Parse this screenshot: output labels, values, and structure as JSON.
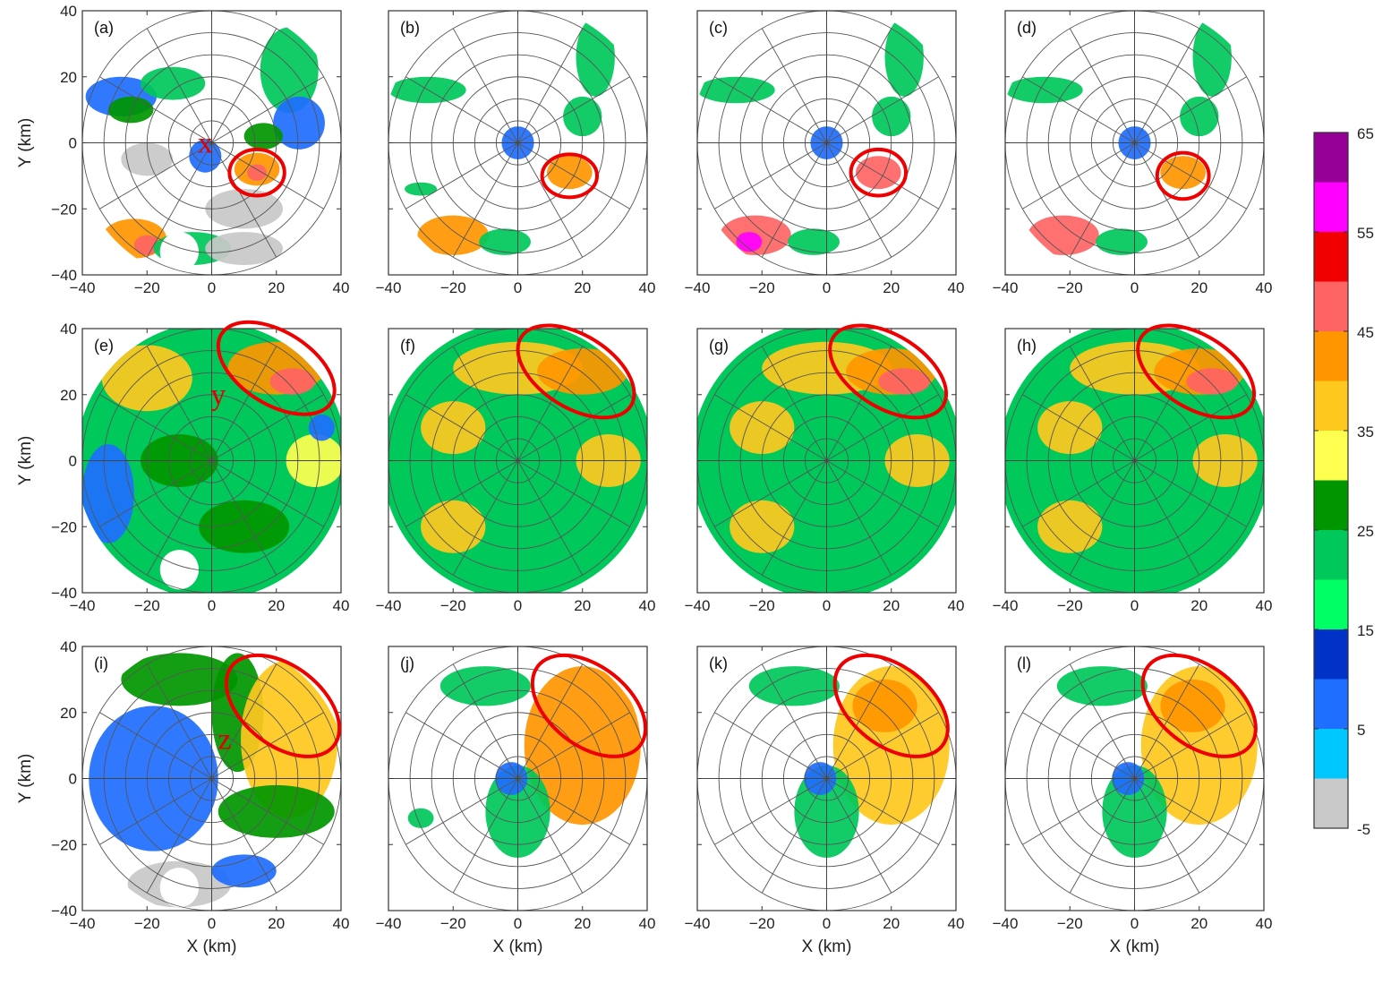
{
  "figure": {
    "x_axis_label": "X (km)",
    "y_axis_label": "Y (km)",
    "axis_ticks": [
      -40,
      -20,
      0,
      20,
      40
    ],
    "axis_range_km": [
      -40,
      40
    ],
    "range_rings_km": [
      6.67,
      13.33,
      20,
      26.67,
      33.33,
      40
    ],
    "radial_spacing_deg": 30,
    "radar_max_range_km": 42
  },
  "colorbar": {
    "tick_labels": [
      "65",
      "55",
      "45",
      "35",
      "25",
      "15",
      "5",
      "-5"
    ],
    "tick_values": [
      65,
      55,
      45,
      35,
      25,
      15,
      5,
      -5
    ],
    "range": [
      -5,
      65
    ],
    "bins": [
      {
        "from": -5,
        "to": 0,
        "color": "#c8c8c8"
      },
      {
        "from": 0,
        "to": 5,
        "color": "#00c8ff"
      },
      {
        "from": 5,
        "to": 10,
        "color": "#1e6eff"
      },
      {
        "from": 10,
        "to": 15,
        "color": "#0032c8"
      },
      {
        "from": 15,
        "to": 20,
        "color": "#00ff64"
      },
      {
        "from": 20,
        "to": 25,
        "color": "#00c85a"
      },
      {
        "from": 25,
        "to": 30,
        "color": "#009600"
      },
      {
        "from": 30,
        "to": 35,
        "color": "#ffff50"
      },
      {
        "from": 35,
        "to": 40,
        "color": "#ffc81e"
      },
      {
        "from": 40,
        "to": 45,
        "color": "#ff9600"
      },
      {
        "from": 45,
        "to": 50,
        "color": "#ff6464"
      },
      {
        "from": 50,
        "to": 55,
        "color": "#f00000"
      },
      {
        "from": 55,
        "to": 60,
        "color": "#ff00ff"
      },
      {
        "from": 60,
        "to": 65,
        "color": "#960096"
      }
    ]
  },
  "chart_data": {
    "type": "heatmap",
    "description_units": "km",
    "panels": [
      {
        "label": "(a)",
        "row": 0,
        "col": 0,
        "marker": "x",
        "marker_pos_km": [
          -2,
          -3
        ],
        "ellipse": {
          "cx": 14,
          "cy": -9,
          "rx": 8.5,
          "ry": 7,
          "angle": 0
        },
        "echo_regions": [
          {
            "cx": -28,
            "cy": 14,
            "rx": 11,
            "ry": 6,
            "color": "#1e6eff"
          },
          {
            "cx": -25,
            "cy": 10,
            "rx": 7,
            "ry": 4,
            "color": "#009600"
          },
          {
            "cx": -12,
            "cy": 18,
            "rx": 10,
            "ry": 5,
            "color": "#00c85a"
          },
          {
            "cx": 24,
            "cy": 22,
            "rx": 9,
            "ry": 13,
            "color": "#00c85a"
          },
          {
            "cx": 27,
            "cy": 6,
            "rx": 8,
            "ry": 8,
            "color": "#1e6eff"
          },
          {
            "cx": 16,
            "cy": 2,
            "rx": 6,
            "ry": 4,
            "color": "#009600"
          },
          {
            "cx": 14,
            "cy": -8,
            "rx": 7,
            "ry": 5,
            "color": "#ff9600"
          },
          {
            "cx": 14,
            "cy": -9,
            "rx": 3,
            "ry": 2.5,
            "color": "#ff6464"
          },
          {
            "cx": -20,
            "cy": -5,
            "rx": 8,
            "ry": 5,
            "color": "#c8c8c8"
          },
          {
            "cx": 10,
            "cy": -20,
            "rx": 12,
            "ry": 6,
            "color": "#c8c8c8"
          },
          {
            "cx": -24,
            "cy": -29,
            "rx": 10,
            "ry": 6,
            "color": "#ff9600"
          },
          {
            "cx": -20,
            "cy": -31,
            "rx": 4,
            "ry": 3,
            "color": "#ff6464"
          },
          {
            "cx": -6,
            "cy": -32,
            "rx": 12,
            "ry": 5,
            "color": "#00c85a"
          },
          {
            "cx": 10,
            "cy": -32,
            "rx": 12,
            "ry": 5,
            "color": "#c8c8c8"
          },
          {
            "cx": -2,
            "cy": -4,
            "rx": 5,
            "ry": 5,
            "color": "#1e6eff"
          }
        ],
        "blank_disk": {
          "cx": -10,
          "cy": -33,
          "r": 6
        }
      },
      {
        "label": "(b)",
        "row": 0,
        "col": 1,
        "ellipse": {
          "cx": 16,
          "cy": -10,
          "rx": 8.5,
          "ry": 6.5,
          "angle": 0
        },
        "echo_regions": [
          {
            "cx": -28,
            "cy": 16,
            "rx": 12,
            "ry": 4,
            "color": "#00c85a"
          },
          {
            "cx": 24,
            "cy": 26,
            "rx": 6,
            "ry": 12,
            "color": "#00c85a"
          },
          {
            "cx": 20,
            "cy": 8,
            "rx": 6,
            "ry": 6,
            "color": "#00c85a"
          },
          {
            "cx": 16,
            "cy": -9,
            "rx": 7,
            "ry": 5,
            "color": "#ff9600"
          },
          {
            "cx": 0,
            "cy": 0,
            "rx": 5,
            "ry": 5,
            "color": "#1e6eff"
          },
          {
            "cx": -20,
            "cy": -28,
            "rx": 11,
            "ry": 6,
            "color": "#ff9600"
          },
          {
            "cx": -4,
            "cy": -30,
            "rx": 8,
            "ry": 4,
            "color": "#00c85a"
          },
          {
            "cx": -30,
            "cy": -14,
            "rx": 5,
            "ry": 2,
            "color": "#00c85a"
          }
        ]
      },
      {
        "label": "(c)",
        "row": 0,
        "col": 2,
        "ellipse": {
          "cx": 16,
          "cy": -9,
          "rx": 8.5,
          "ry": 7,
          "angle": 0
        },
        "echo_regions": [
          {
            "cx": -28,
            "cy": 16,
            "rx": 12,
            "ry": 4,
            "color": "#00c85a"
          },
          {
            "cx": 24,
            "cy": 26,
            "rx": 6,
            "ry": 12,
            "color": "#00c85a"
          },
          {
            "cx": 20,
            "cy": 8,
            "rx": 6,
            "ry": 6,
            "color": "#00c85a"
          },
          {
            "cx": 16,
            "cy": -9,
            "rx": 7,
            "ry": 5,
            "color": "#ff6464"
          },
          {
            "cx": 0,
            "cy": 0,
            "rx": 5,
            "ry": 5,
            "color": "#1e6eff"
          },
          {
            "cx": -22,
            "cy": -28,
            "rx": 11,
            "ry": 6,
            "color": "#ff6464"
          },
          {
            "cx": -24,
            "cy": -30,
            "rx": 4,
            "ry": 3,
            "color": "#ff00ff"
          },
          {
            "cx": -4,
            "cy": -30,
            "rx": 8,
            "ry": 4,
            "color": "#00c85a"
          }
        ]
      },
      {
        "label": "(d)",
        "row": 0,
        "col": 3,
        "ellipse": {
          "cx": 15,
          "cy": -10,
          "rx": 8,
          "ry": 7,
          "angle": 0
        },
        "echo_regions": [
          {
            "cx": -28,
            "cy": 16,
            "rx": 12,
            "ry": 4,
            "color": "#00c85a"
          },
          {
            "cx": 24,
            "cy": 26,
            "rx": 6,
            "ry": 12,
            "color": "#00c85a"
          },
          {
            "cx": 20,
            "cy": 8,
            "rx": 6,
            "ry": 6,
            "color": "#00c85a"
          },
          {
            "cx": 15,
            "cy": -9,
            "rx": 7,
            "ry": 5,
            "color": "#ff9600"
          },
          {
            "cx": 0,
            "cy": 0,
            "rx": 5,
            "ry": 5,
            "color": "#1e6eff"
          },
          {
            "cx": -22,
            "cy": -28,
            "rx": 11,
            "ry": 6,
            "color": "#ff6464"
          },
          {
            "cx": -4,
            "cy": -30,
            "rx": 8,
            "ry": 4,
            "color": "#00c85a"
          }
        ]
      },
      {
        "label": "(e)",
        "row": 1,
        "col": 0,
        "marker": "y",
        "marker_pos_km": [
          2,
          17
        ],
        "ellipse": {
          "cx": 20,
          "cy": 28,
          "rx": 20,
          "ry": 11,
          "angle": 32
        },
        "background": "#00c85a",
        "echo_regions": [
          {
            "cx": -20,
            "cy": 25,
            "rx": 14,
            "ry": 10,
            "color": "#ffc81e"
          },
          {
            "cx": 20,
            "cy": 28,
            "rx": 15,
            "ry": 8,
            "color": "#ff9600"
          },
          {
            "cx": 25,
            "cy": 24,
            "rx": 7,
            "ry": 4,
            "color": "#ff6464"
          },
          {
            "cx": 32,
            "cy": 0,
            "rx": 9,
            "ry": 8,
            "color": "#ffff50"
          },
          {
            "cx": -32,
            "cy": -10,
            "rx": 8,
            "ry": 15,
            "color": "#1e6eff"
          },
          {
            "cx": -10,
            "cy": 0,
            "rx": 12,
            "ry": 8,
            "color": "#009600"
          },
          {
            "cx": 10,
            "cy": -20,
            "rx": 14,
            "ry": 8,
            "color": "#009600"
          },
          {
            "cx": 34,
            "cy": 10,
            "rx": 4,
            "ry": 4,
            "color": "#1e6eff"
          }
        ],
        "blank_disk": {
          "cx": -10,
          "cy": -33,
          "r": 6
        }
      },
      {
        "label": "(f)",
        "row": 1,
        "col": 1,
        "ellipse": {
          "cx": 18,
          "cy": 27,
          "rx": 20,
          "ry": 11,
          "angle": 32
        },
        "background": "#00c85a",
        "echo_regions": [
          {
            "cx": 0,
            "cy": 28,
            "rx": 20,
            "ry": 8,
            "color": "#ffc81e"
          },
          {
            "cx": 20,
            "cy": 27,
            "rx": 14,
            "ry": 7,
            "color": "#ff9600"
          },
          {
            "cx": 28,
            "cy": 0,
            "rx": 10,
            "ry": 8,
            "color": "#ffc81e"
          },
          {
            "cx": -20,
            "cy": 10,
            "rx": 10,
            "ry": 8,
            "color": "#ffc81e"
          },
          {
            "cx": -20,
            "cy": -20,
            "rx": 10,
            "ry": 8,
            "color": "#ffc81e"
          }
        ]
      },
      {
        "label": "(g)",
        "row": 1,
        "col": 2,
        "ellipse": {
          "cx": 19,
          "cy": 27,
          "rx": 20,
          "ry": 11,
          "angle": 32
        },
        "background": "#00c85a",
        "echo_regions": [
          {
            "cx": 0,
            "cy": 28,
            "rx": 20,
            "ry": 8,
            "color": "#ffc81e"
          },
          {
            "cx": 20,
            "cy": 27,
            "rx": 14,
            "ry": 7,
            "color": "#ff9600"
          },
          {
            "cx": 24,
            "cy": 24,
            "rx": 8,
            "ry": 4,
            "color": "#ff6464"
          },
          {
            "cx": 28,
            "cy": 0,
            "rx": 10,
            "ry": 8,
            "color": "#ffc81e"
          },
          {
            "cx": -20,
            "cy": 10,
            "rx": 10,
            "ry": 8,
            "color": "#ffc81e"
          },
          {
            "cx": -20,
            "cy": -20,
            "rx": 10,
            "ry": 8,
            "color": "#ffc81e"
          }
        ]
      },
      {
        "label": "(h)",
        "row": 1,
        "col": 3,
        "ellipse": {
          "cx": 19,
          "cy": 27,
          "rx": 20,
          "ry": 11,
          "angle": 32
        },
        "background": "#00c85a",
        "echo_regions": [
          {
            "cx": 0,
            "cy": 28,
            "rx": 20,
            "ry": 8,
            "color": "#ffc81e"
          },
          {
            "cx": 20,
            "cy": 27,
            "rx": 14,
            "ry": 7,
            "color": "#ff9600"
          },
          {
            "cx": 24,
            "cy": 24,
            "rx": 8,
            "ry": 4,
            "color": "#ff6464"
          },
          {
            "cx": 28,
            "cy": 0,
            "rx": 10,
            "ry": 8,
            "color": "#ffc81e"
          },
          {
            "cx": -20,
            "cy": 10,
            "rx": 10,
            "ry": 8,
            "color": "#ffc81e"
          },
          {
            "cx": -20,
            "cy": -20,
            "rx": 10,
            "ry": 8,
            "color": "#ffc81e"
          }
        ]
      },
      {
        "label": "(i)",
        "row": 2,
        "col": 0,
        "marker": "z",
        "marker_pos_km": [
          4,
          9
        ],
        "ellipse": {
          "cx": 22,
          "cy": 22,
          "rx": 20,
          "ry": 12,
          "angle": 38
        },
        "echo_regions": [
          {
            "cx": -18,
            "cy": 0,
            "rx": 20,
            "ry": 22,
            "color": "#1e6eff"
          },
          {
            "cx": -10,
            "cy": 30,
            "rx": 18,
            "ry": 8,
            "color": "#009600"
          },
          {
            "cx": 8,
            "cy": 20,
            "rx": 8,
            "ry": 18,
            "color": "#009600"
          },
          {
            "cx": 24,
            "cy": 12,
            "rx": 15,
            "ry": 24,
            "color": "#ffc81e"
          },
          {
            "cx": 20,
            "cy": -10,
            "rx": 18,
            "ry": 8,
            "color": "#009600"
          },
          {
            "cx": -10,
            "cy": -32,
            "rx": 16,
            "ry": 7,
            "color": "#c8c8c8"
          },
          {
            "cx": 10,
            "cy": -28,
            "rx": 10,
            "ry": 5,
            "color": "#1e6eff"
          }
        ],
        "blank_disk": {
          "cx": -10,
          "cy": -33,
          "r": 6
        }
      },
      {
        "label": "(j)",
        "row": 2,
        "col": 1,
        "ellipse": {
          "cx": 22,
          "cy": 22,
          "rx": 20,
          "ry": 12,
          "angle": 38
        },
        "echo_regions": [
          {
            "cx": -10,
            "cy": 28,
            "rx": 14,
            "ry": 6,
            "color": "#00c85a"
          },
          {
            "cx": 20,
            "cy": 10,
            "rx": 18,
            "ry": 24,
            "color": "#ff9600"
          },
          {
            "cx": 0,
            "cy": -10,
            "rx": 10,
            "ry": 14,
            "color": "#00c85a"
          },
          {
            "cx": -2,
            "cy": 0,
            "rx": 5,
            "ry": 5,
            "color": "#1e6eff"
          },
          {
            "cx": -30,
            "cy": -12,
            "rx": 4,
            "ry": 3,
            "color": "#00c85a"
          }
        ]
      },
      {
        "label": "(k)",
        "row": 2,
        "col": 2,
        "ellipse": {
          "cx": 20,
          "cy": 22,
          "rx": 20,
          "ry": 12,
          "angle": 38
        },
        "echo_regions": [
          {
            "cx": -10,
            "cy": 28,
            "rx": 14,
            "ry": 6,
            "color": "#00c85a"
          },
          {
            "cx": 20,
            "cy": 10,
            "rx": 18,
            "ry": 24,
            "color": "#ffc81e"
          },
          {
            "cx": 18,
            "cy": 22,
            "rx": 10,
            "ry": 8,
            "color": "#ff9600"
          },
          {
            "cx": 0,
            "cy": -10,
            "rx": 10,
            "ry": 14,
            "color": "#00c85a"
          },
          {
            "cx": -2,
            "cy": 0,
            "rx": 5,
            "ry": 5,
            "color": "#1e6eff"
          }
        ]
      },
      {
        "label": "(l)",
        "row": 2,
        "col": 3,
        "ellipse": {
          "cx": 20,
          "cy": 22,
          "rx": 20,
          "ry": 12,
          "angle": 38
        },
        "echo_regions": [
          {
            "cx": -10,
            "cy": 28,
            "rx": 14,
            "ry": 6,
            "color": "#00c85a"
          },
          {
            "cx": 20,
            "cy": 10,
            "rx": 18,
            "ry": 24,
            "color": "#ffc81e"
          },
          {
            "cx": 18,
            "cy": 22,
            "rx": 10,
            "ry": 8,
            "color": "#ff9600"
          },
          {
            "cx": 0,
            "cy": -10,
            "rx": 10,
            "ry": 14,
            "color": "#00c85a"
          },
          {
            "cx": -2,
            "cy": 0,
            "rx": 5,
            "ry": 5,
            "color": "#1e6eff"
          }
        ]
      }
    ]
  }
}
